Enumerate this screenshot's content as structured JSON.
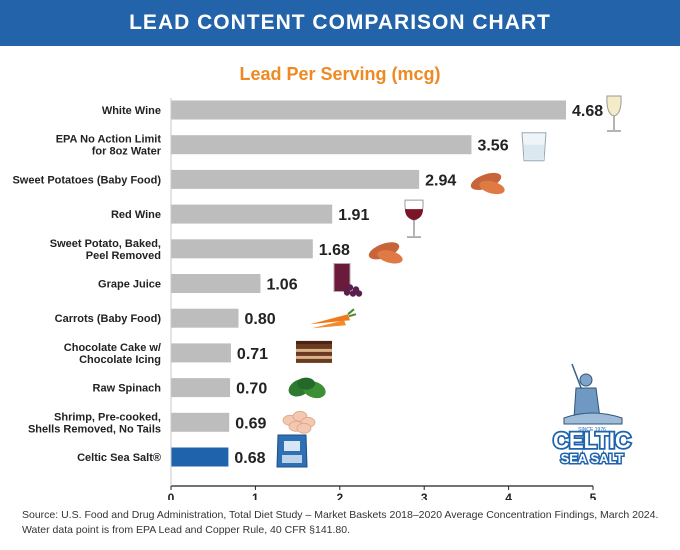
{
  "header": {
    "title": "LEAD CONTENT COMPARISON CHART"
  },
  "chart_data": {
    "type": "bar",
    "orientation": "horizontal",
    "title": "Lead Per Serving (mcg)",
    "categories": [
      [
        "White Wine"
      ],
      [
        "EPA No Action Limit",
        "for 8oz Water"
      ],
      [
        "Sweet Potatoes (Baby Food)"
      ],
      [
        "Red Wine"
      ],
      [
        "Sweet Potato, Baked,",
        "Peel Removed"
      ],
      [
        "Grape Juice"
      ],
      [
        "Carrots (Baby Food)"
      ],
      [
        "Chocolate Cake w/",
        "Chocolate Icing"
      ],
      [
        "Raw Spinach"
      ],
      [
        "Shrimp, Pre-cooked,",
        "Shells Removed, No Tails"
      ],
      [
        "Celtic Sea Salt®"
      ]
    ],
    "values": [
      4.68,
      3.56,
      2.94,
      1.91,
      1.68,
      1.06,
      0.8,
      0.71,
      0.7,
      0.69,
      0.68
    ],
    "value_labels": [
      "4.68",
      "3.56",
      "2.94",
      "1.91",
      "1.68",
      "1.06",
      "0.80",
      "0.71",
      "0.70",
      "0.69",
      "0.68"
    ],
    "xlim": [
      0,
      5
    ],
    "xticks": [
      "0",
      "1",
      "2",
      "3",
      "4",
      "5"
    ],
    "grid": false,
    "colors": {
      "default": "#bdbdbd",
      "highlight": "#1f63ad"
    },
    "highlight_index": 10,
    "icons": [
      "white-wine-glass-icon",
      "water-glass-icon",
      "sweet-potato-icon",
      "red-wine-glass-icon",
      "baked-sweet-potato-icon",
      "grape-juice-icon",
      "carrot-icon",
      "chocolate-cake-icon",
      "spinach-icon",
      "shrimp-icon",
      "celtic-sea-salt-bag-icon"
    ]
  },
  "logo": {
    "line1": "CELTIC",
    "line2": "SEA SALT",
    "since": "SINCE 1976"
  },
  "source": {
    "text": "Source: U.S. Food and Drug Administration, Total Diet Study – Market Baskets 2018–2020 Average Concentration Findings, March 2024. Water data point is from EPA Lead and Copper Rule, 40 CFR §141.80."
  }
}
